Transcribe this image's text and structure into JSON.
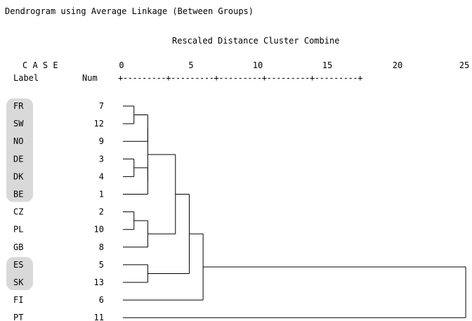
{
  "title": "Dendrogram using Average Linkage (Between Groups)",
  "subtitle": "Rescaled Distance Cluster Combine",
  "header": {
    "case_label": "C A S E",
    "label_col": "Label",
    "num_col": "Num"
  },
  "axis": {
    "ticks": [
      "0",
      "5",
      "10",
      "15",
      "20",
      "25"
    ],
    "ruler": "+---------+---------+---------+---------+---------+"
  },
  "highlight_color": "#d9d9d9",
  "cases": [
    {
      "label": "FR",
      "num": "7",
      "highlight": true
    },
    {
      "label": "SW",
      "num": "12",
      "highlight": true
    },
    {
      "label": "NO",
      "num": "9",
      "highlight": true
    },
    {
      "label": "DE",
      "num": "3",
      "highlight": true
    },
    {
      "label": "DK",
      "num": "4",
      "highlight": true
    },
    {
      "label": "BE",
      "num": "1",
      "highlight": true
    },
    {
      "label": "CZ",
      "num": "2",
      "highlight": false
    },
    {
      "label": "PL",
      "num": "10",
      "highlight": false
    },
    {
      "label": "GB",
      "num": "8",
      "highlight": false
    },
    {
      "label": "ES",
      "num": "5",
      "highlight": true
    },
    {
      "label": "SK",
      "num": "13",
      "highlight": true
    },
    {
      "label": "FI",
      "num": "6",
      "highlight": false
    },
    {
      "label": "PT",
      "num": "11",
      "highlight": false
    }
  ],
  "merges": [
    {
      "a": "FR",
      "b": "SW",
      "height": 0.8
    },
    {
      "a": "DE",
      "b": "DK",
      "height": 0.8
    },
    {
      "a": "CZ",
      "b": "PL",
      "height": 0.8
    },
    {
      "a": "M1",
      "b": "NO",
      "height": 1.8
    },
    {
      "a": "M2",
      "b": "BE",
      "height": 1.8
    },
    {
      "a": "M3",
      "b": "GB",
      "height": 1.8
    },
    {
      "a": "ES",
      "b": "SK",
      "height": 1.8
    },
    {
      "a": "M4",
      "b": "M5",
      "height": 1.8
    },
    {
      "a": "M8",
      "b": "M6",
      "height": 3.8
    },
    {
      "a": "M9",
      "b": "M7",
      "height": 4.8
    },
    {
      "a": "M10",
      "b": "FI",
      "height": 5.8
    },
    {
      "a": "M11",
      "b": "PT",
      "height": 24.8
    }
  ]
}
